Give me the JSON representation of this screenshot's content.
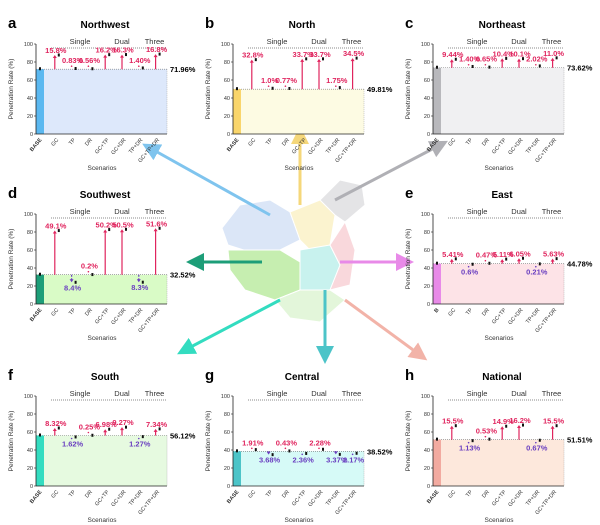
{
  "scenarios": [
    "BASE",
    "GC",
    "TP",
    "DR",
    "GC+TP",
    "GC+DR",
    "TP+DR",
    "GC+TP+DR"
  ],
  "groups": [
    "Single",
    "Dual",
    "Three"
  ],
  "ylabel": "Penetration Rate (%)",
  "xlabel": "Scenarios",
  "colors": {
    "increase": "#e0245e",
    "decrease": "#6a3fc0"
  },
  "chart_data": [
    {
      "letter": "a",
      "type": "bar",
      "title": "Northwest",
      "base": 71.96,
      "base_label": "71.96%",
      "bar_color": "#5bb8f0",
      "bg_color": "#dde8fb",
      "ylim": [
        0,
        100
      ],
      "changes": [
        15.8,
        0.83,
        0.56,
        16.2,
        16.3,
        1.4,
        16.8
      ],
      "labels": [
        "15.8%",
        "0.83%",
        "0.56%",
        "16.2%",
        "16.3%",
        "1.40%",
        "16.8%"
      ]
    },
    {
      "letter": "b",
      "type": "bar",
      "title": "North",
      "base": 49.81,
      "base_label": "49.81%",
      "bar_color": "#f9d56b",
      "bg_color": "#fdfbe3",
      "ylim": [
        0,
        100
      ],
      "changes": [
        32.8,
        1.0,
        0.77,
        33.7,
        33.7,
        1.75,
        34.5
      ],
      "labels": [
        "32.8%",
        "1.0%",
        "0.77%",
        "33.7%",
        "33.7%",
        "1.75%",
        "34.5%"
      ]
    },
    {
      "letter": "c",
      "type": "bar",
      "title": "Northeast",
      "base": 73.62,
      "base_label": "73.62%",
      "bar_color": "#b8b8bc",
      "bg_color": "#f0f0f2",
      "ylim": [
        0,
        100
      ],
      "changes": [
        9.44,
        1.4,
        0.65,
        10.4,
        10.1,
        2.02,
        11.0
      ],
      "labels": [
        "9.44%",
        "1.40%",
        "0.65%",
        "10.4%",
        "10.1%",
        "2.02%",
        "11.0%"
      ]
    },
    {
      "letter": "d",
      "type": "bar",
      "title": "Southwest",
      "base": 32.52,
      "base_label": "32.52%",
      "bar_color": "#1d9e78",
      "bg_color": "#d9fbc6",
      "ylim": [
        0,
        100
      ],
      "changes": [
        49.1,
        -8.4,
        0.2,
        50.2,
        50.5,
        -8.3,
        51.6
      ],
      "labels": [
        "49.1%",
        "8.4%",
        "0.2%",
        "50.2%",
        "50.5%",
        "8.3%",
        "51.6%"
      ]
    },
    {
      "letter": "e",
      "type": "bar",
      "title": "East",
      "base": 44.78,
      "base_label": "44.78%",
      "bar_color": "#e88ae8",
      "bg_color": "#fde3e7",
      "ylim": [
        0,
        100
      ],
      "first_tick": "B",
      "changes": [
        5.41,
        -0.6,
        0.47,
        5.11,
        6.05,
        -0.21,
        5.63
      ],
      "labels": [
        "5.41%",
        "0.6%",
        "0.47%",
        "5.11%",
        "6.05%",
        "0.21%",
        "5.63%"
      ]
    },
    {
      "letter": "f",
      "type": "bar",
      "title": "South",
      "base": 56.12,
      "base_label": "56.12%",
      "bar_color": "#33dcc0",
      "bg_color": "#e6fae0",
      "ylim": [
        0,
        100
      ],
      "changes": [
        8.32,
        -1.62,
        0.25,
        6.98,
        9.27,
        -1.27,
        7.34
      ],
      "labels": [
        "8.32%",
        "1.62%",
        "0.25%",
        "6.98%",
        "9.27%",
        "1.27%",
        "7.34%"
      ]
    },
    {
      "letter": "g",
      "type": "bar",
      "title": "Central",
      "base": 38.52,
      "base_label": "38.52%",
      "bar_color": "#4cc4c8",
      "bg_color": "#d6faf7",
      "ylim": [
        0,
        100
      ],
      "changes": [
        1.91,
        -3.68,
        0.43,
        -2.36,
        2.28,
        -3.37,
        -2.17
      ],
      "labels": [
        "1.91%",
        "3.68%",
        "0.43%",
        "2.36%",
        "2.28%",
        "3.37%",
        "2.17%"
      ]
    },
    {
      "letter": "h",
      "type": "bar",
      "title": "National",
      "base": 51.51,
      "base_label": "51.51%",
      "bar_color": "#f2aaa0",
      "bg_color": "#fde8dc",
      "ylim": [
        0,
        100
      ],
      "changes": [
        15.5,
        -1.13,
        0.53,
        14.9,
        16.2,
        -0.67,
        15.5
      ],
      "labels": [
        "15.5%",
        "1.13%",
        "0.53%",
        "14.9%",
        "16.2%",
        "0.67%",
        "15.5%"
      ]
    }
  ]
}
